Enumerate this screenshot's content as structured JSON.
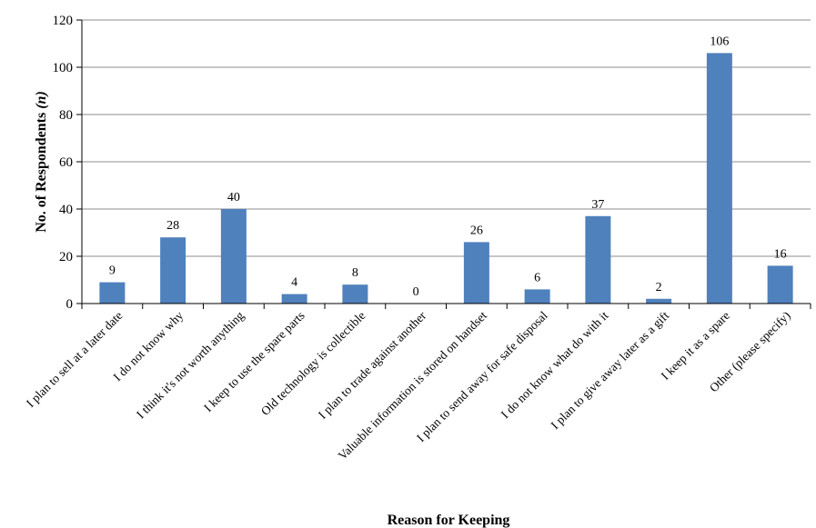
{
  "chart_data": {
    "type": "bar",
    "title": "",
    "xlabel": "Reason for Keeping",
    "ylabel": "No. of Respondents",
    "ylabel_italic_suffix": "(n)",
    "ylim": [
      0,
      120
    ],
    "yticks": [
      0,
      20,
      40,
      60,
      80,
      100,
      120
    ],
    "grid": true,
    "legend": "none",
    "bar_color": "#4f81bd",
    "categories": [
      "I plan to sell at a later date",
      "I do not know why",
      "I think it's not worth anything",
      "I keep to use the spare parts",
      "Old technology is collectible",
      "I plan to trade against another",
      "Valuable information is stored on handset",
      "I plan to send away for safe disposal",
      "I do not know what do with it",
      "I plan to give away later as a gift",
      "I keep it as a spare",
      "Other (please specify)"
    ],
    "series": [
      {
        "values": [
          9,
          28,
          40,
          4,
          8,
          0,
          26,
          6,
          37,
          2,
          106,
          16
        ]
      }
    ]
  }
}
